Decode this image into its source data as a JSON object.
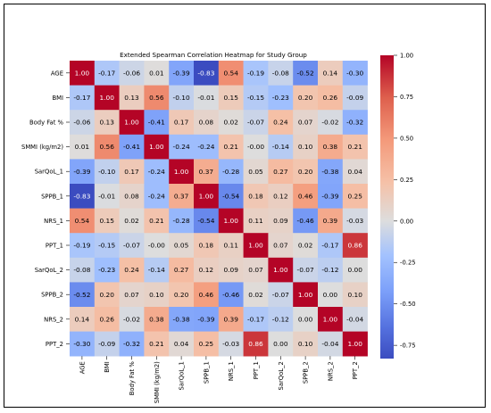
{
  "chart_data": {
    "type": "heatmap",
    "title": "Extended Spearman Correlation Heatmap for Study Group",
    "variables": [
      "AGE",
      "BMI",
      "Body Fat %",
      "SMMI (kg/m2)",
      "SarQoL_1",
      "SPPB_1",
      "NRS_1",
      "PPT_1",
      "SarQoL_2",
      "SPPB_2",
      "NRS_2",
      "PPT_2"
    ],
    "values": [
      [
        1.0,
        -0.17,
        -0.06,
        0.01,
        -0.39,
        -0.83,
        0.54,
        -0.19,
        -0.08,
        -0.52,
        0.14,
        -0.3
      ],
      [
        -0.17,
        1.0,
        0.13,
        0.56,
        -0.1,
        -0.01,
        0.15,
        -0.15,
        -0.23,
        0.2,
        0.26,
        -0.09
      ],
      [
        -0.06,
        0.13,
        1.0,
        -0.41,
        0.17,
        0.08,
        0.02,
        -0.07,
        0.24,
        0.07,
        -0.02,
        -0.32
      ],
      [
        0.01,
        0.56,
        -0.41,
        1.0,
        -0.24,
        -0.24,
        0.21,
        -0.0,
        -0.14,
        0.1,
        0.38,
        0.21
      ],
      [
        -0.39,
        -0.1,
        0.17,
        -0.24,
        1.0,
        0.37,
        -0.28,
        0.05,
        0.27,
        0.2,
        -0.38,
        0.04
      ],
      [
        -0.83,
        -0.01,
        0.08,
        -0.24,
        0.37,
        1.0,
        -0.54,
        0.18,
        0.12,
        0.46,
        -0.39,
        0.25
      ],
      [
        0.54,
        0.15,
        0.02,
        0.21,
        -0.28,
        -0.54,
        1.0,
        0.11,
        0.09,
        -0.46,
        0.39,
        -0.03
      ],
      [
        -0.19,
        -0.15,
        -0.07,
        -0.0,
        0.05,
        0.18,
        0.11,
        1.0,
        0.07,
        0.02,
        -0.17,
        0.86
      ],
      [
        -0.08,
        -0.23,
        0.24,
        -0.14,
        0.27,
        0.12,
        0.09,
        0.07,
        1.0,
        -0.07,
        -0.12,
        0.0
      ],
      [
        -0.52,
        0.2,
        0.07,
        0.1,
        0.2,
        0.46,
        -0.46,
        0.02,
        -0.07,
        1.0,
        0.0,
        0.1
      ],
      [
        0.14,
        0.26,
        -0.02,
        0.38,
        -0.38,
        -0.39,
        0.39,
        -0.17,
        -0.12,
        0.0,
        1.0,
        -0.04
      ],
      [
        -0.3,
        -0.09,
        -0.32,
        0.21,
        0.04,
        0.25,
        -0.03,
        0.86,
        0.0,
        0.1,
        -0.04,
        1.0
      ]
    ],
    "colorbar": {
      "range": [
        -0.83,
        1.0
      ],
      "ticks": [
        "1.00",
        "0.75",
        "0.50",
        "0.25",
        "0.00",
        "-0.25",
        "-0.50",
        "-0.75"
      ],
      "colormap": "coolwarm",
      "low_color": "#3b4cc0",
      "mid_color": "#dddddd",
      "high_color": "#b40426"
    }
  }
}
